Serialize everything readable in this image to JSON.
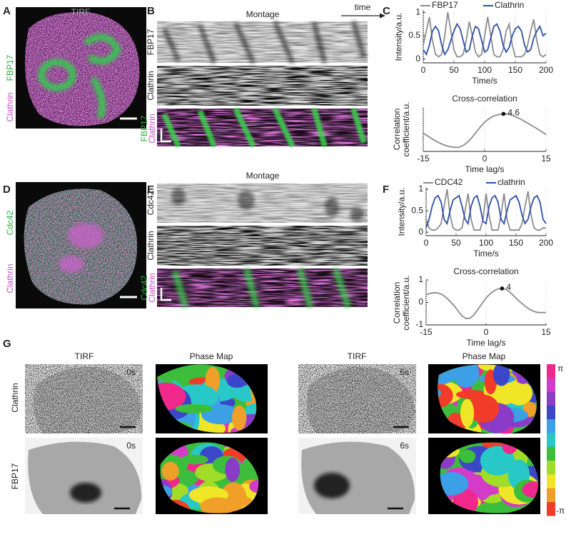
{
  "figure": {
    "panel_a": {
      "letter": "A",
      "title": "TIRF",
      "channel_green": "FBP17",
      "channel_magenta": "Clathrin"
    },
    "panel_b": {
      "letter": "B",
      "title": "Montage",
      "arrow_label": "time",
      "rows": [
        "FBP17",
        "Clathrin"
      ],
      "merge_green": "FBP17",
      "merge_magenta": "Clathrin"
    },
    "panel_c": {
      "letter": "C"
    },
    "panel_d": {
      "letter": "D",
      "channel_green": "Cdc42",
      "channel_magenta": "Clathrin"
    },
    "panel_e": {
      "letter": "E",
      "title": "Montage",
      "rows": [
        "Cdc42",
        "Clathrin"
      ],
      "merge_green": "Cdc42",
      "merge_magenta": "Clathrin"
    },
    "panel_f": {
      "letter": "F"
    },
    "panel_g": {
      "letter": "G",
      "column_titles": [
        "TIRF",
        "Phase Map",
        "TIRF",
        "Phase Map"
      ],
      "row_labels": [
        "Clathrin",
        "FBP17"
      ],
      "timestamps": [
        "0s",
        "6s",
        "0s",
        "6s"
      ],
      "colorbar_labels": [
        "π",
        "-π"
      ]
    }
  },
  "chart_data": [
    {
      "type": "line",
      "xlabel": "Time/s",
      "ylabel": "Intensity/a.u.",
      "legend": "top",
      "grid": true,
      "xlim": [
        0,
        200
      ],
      "xticks": [
        0,
        50,
        100,
        150,
        200
      ],
      "ylim": [
        -0.08,
        1.05
      ],
      "yticks": [
        0,
        0.5,
        1
      ],
      "x": [
        0,
        5,
        10,
        15,
        20,
        25,
        30,
        35,
        40,
        45,
        50,
        55,
        60,
        65,
        70,
        75,
        80,
        85,
        90,
        95,
        100,
        105,
        110,
        115,
        120,
        125,
        130,
        135,
        140,
        145,
        150,
        155,
        160,
        165,
        170,
        175,
        180,
        185,
        190,
        195,
        200
      ],
      "series": [
        {
          "name": "FBP17",
          "color": "#8c8c8c",
          "values": [
            0.3,
            0.6,
            0.9,
            0.4,
            0.1,
            0.05,
            0.1,
            0.5,
            1.0,
            0.6,
            0.2,
            0.05,
            0.05,
            0.1,
            0.4,
            0.8,
            0.5,
            0.15,
            0.05,
            0.1,
            0.5,
            0.9,
            0.5,
            0.1,
            0.05,
            0.05,
            0.2,
            0.6,
            0.75,
            0.3,
            0.05,
            0.05,
            0.05,
            0.1,
            0.3,
            0.6,
            0.85,
            0.4,
            0.1,
            0.05,
            0.1
          ]
        },
        {
          "name": "Clathrin",
          "color": "#2f4fa8",
          "values": [
            0.2,
            0.1,
            0.3,
            0.6,
            0.7,
            0.6,
            0.3,
            0.1,
            0.2,
            0.4,
            0.6,
            0.75,
            0.65,
            0.4,
            0.15,
            0.2,
            0.5,
            0.7,
            0.65,
            0.4,
            0.15,
            0.2,
            0.45,
            0.7,
            0.75,
            0.6,
            0.3,
            0.15,
            0.25,
            0.5,
            0.65,
            0.7,
            0.6,
            0.3,
            0.15,
            0.2,
            0.45,
            0.6,
            0.7,
            0.5,
            0.55
          ]
        }
      ]
    },
    {
      "type": "line",
      "title": "Cross-correlation",
      "xlabel": "Time lag/s",
      "ylabel": "Correlation coefficient/a.u.",
      "grid": true,
      "xlim": [
        -15,
        15
      ],
      "xticks": [
        -15,
        0,
        15
      ],
      "ylim": [
        -0.8,
        0.9
      ],
      "color": "#8c8c8c",
      "x": [
        -15,
        -14,
        -13,
        -12,
        -11,
        -10,
        -9,
        -8,
        -7,
        -6,
        -5,
        -4,
        -3,
        -2,
        -1,
        0,
        1,
        2,
        3,
        4,
        5,
        6,
        7,
        8,
        9,
        10,
        11,
        12,
        13,
        14,
        15
      ],
      "values": [
        -0.1,
        -0.2,
        -0.3,
        -0.4,
        -0.48,
        -0.55,
        -0.6,
        -0.63,
        -0.65,
        -0.63,
        -0.55,
        -0.42,
        -0.25,
        -0.05,
        0.15,
        0.32,
        0.45,
        0.54,
        0.6,
        0.63,
        0.64,
        0.62,
        0.57,
        0.5,
        0.42,
        0.33,
        0.24,
        0.15,
        0.05,
        -0.05,
        -0.15
      ],
      "annotation": {
        "x": 4.6,
        "y": 0.64
      }
    },
    {
      "type": "line",
      "xlabel": "Time/s",
      "ylabel": "Intensity/a.u.",
      "legend": "top",
      "grid": true,
      "xlim": [
        0,
        200
      ],
      "xticks": [
        0,
        50,
        100,
        150,
        200
      ],
      "ylim": [
        -0.08,
        1.05
      ],
      "yticks": [
        0,
        0.5,
        1
      ],
      "x": [
        0,
        5,
        10,
        15,
        20,
        25,
        30,
        35,
        40,
        45,
        50,
        55,
        60,
        65,
        70,
        75,
        80,
        85,
        90,
        95,
        100,
        105,
        110,
        115,
        120,
        125,
        130,
        135,
        140,
        145,
        150,
        155,
        160,
        165,
        170,
        175,
        180,
        185,
        190,
        195,
        200
      ],
      "series": [
        {
          "name": "CDC42",
          "color": "#8c8c8c",
          "values": [
            0.3,
            0.1,
            0.05,
            0.05,
            0.1,
            0.2,
            0.6,
            1.0,
            0.4,
            0.1,
            0.05,
            0.05,
            0.1,
            0.5,
            0.9,
            0.3,
            0.05,
            0.05,
            0.05,
            0.3,
            0.9,
            0.4,
            0.05,
            0.05,
            0.05,
            0.4,
            0.9,
            0.3,
            0.05,
            0.05,
            0.05,
            0.05,
            0.2,
            0.6,
            0.95,
            0.4,
            0.1,
            0.05,
            0.05,
            0.1,
            0.1
          ]
        },
        {
          "name": "clathrin",
          "color": "#2f4fa8",
          "values": [
            0.1,
            0.3,
            0.6,
            0.8,
            0.85,
            0.7,
            0.3,
            0.2,
            0.5,
            0.75,
            0.8,
            0.85,
            0.6,
            0.3,
            0.2,
            0.6,
            0.8,
            0.85,
            0.6,
            0.25,
            0.2,
            0.6,
            0.8,
            0.85,
            0.7,
            0.3,
            0.2,
            0.5,
            0.75,
            0.8,
            0.85,
            0.7,
            0.4,
            0.2,
            0.3,
            0.6,
            0.8,
            0.85,
            0.7,
            0.3,
            0.2
          ]
        }
      ]
    },
    {
      "type": "line",
      "title": "Cross-correlation",
      "xlabel": "Time lag/s",
      "ylabel": "Correlation coefficient/a.u.",
      "grid": true,
      "xlim": [
        -15,
        15
      ],
      "xticks": [
        -15,
        0,
        15
      ],
      "ylim": [
        -1,
        1
      ],
      "yticks": [
        -1,
        0,
        1
      ],
      "color": "#8c8c8c",
      "x": [
        -15,
        -14,
        -13,
        -12,
        -11,
        -10,
        -9,
        -8,
        -7,
        -6,
        -5,
        -4,
        -3,
        -2,
        -1,
        0,
        1,
        2,
        3,
        4,
        5,
        6,
        7,
        8,
        9,
        10,
        11,
        12,
        13,
        14,
        15
      ],
      "values": [
        0.35,
        0.4,
        0.43,
        0.42,
        0.35,
        0.22,
        0.05,
        -0.15,
        -0.38,
        -0.6,
        -0.72,
        -0.7,
        -0.55,
        -0.3,
        -0.05,
        0.2,
        0.38,
        0.52,
        0.6,
        0.62,
        0.58,
        0.45,
        0.28,
        0.1,
        -0.05,
        -0.2,
        -0.32,
        -0.4,
        -0.45,
        -0.45,
        -0.45
      ],
      "annotation": {
        "x": 4,
        "y": 0.62
      }
    }
  ]
}
